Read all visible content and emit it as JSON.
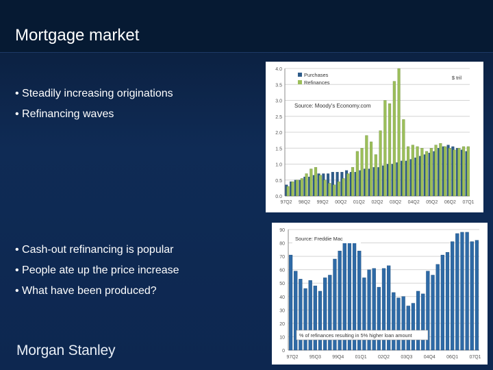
{
  "slide": {
    "title": "Mortgage market",
    "bullets_top": [
      "• Steadily increasing originations",
      "• Refinancing waves"
    ],
    "bullets_bottom": [
      "• Cash-out refinancing is popular",
      "• People ate up the price increase",
      "• What have been produced?"
    ],
    "logo_text": "Morgan Stanley"
  },
  "colors": {
    "background": "#0c2549",
    "purchases": "#2e5c8a",
    "refinances": "#9cbf5a",
    "chart2_bars": "#2e6aa6"
  },
  "chart_data": [
    {
      "type": "bar",
      "unit_label": "$ tril",
      "source": "Source: Moody's Economy.com",
      "legend": [
        "Purchases",
        "Refinances"
      ],
      "legend_position": "top-left",
      "ylim": [
        0,
        4.0
      ],
      "yticks": [
        "4.0",
        "3.5",
        "3.0",
        "2.5",
        "2.0",
        "1.5",
        "1.0",
        "0.5",
        "0.0"
      ],
      "xticks": [
        "97Q2",
        "98Q2",
        "99Q2",
        "00Q2",
        "01Q2",
        "02Q2",
        "03Q2",
        "04Q2",
        "05Q2",
        "06Q2",
        "07Q1"
      ],
      "categories_count": 40,
      "series": [
        {
          "name": "Purchases",
          "values": [
            0.35,
            0.45,
            0.5,
            0.5,
            0.6,
            0.6,
            0.65,
            0.7,
            0.7,
            0.7,
            0.75,
            0.75,
            0.75,
            0.8,
            0.75,
            0.75,
            0.8,
            0.85,
            0.85,
            0.9,
            0.9,
            0.95,
            1.0,
            1.0,
            1.05,
            1.1,
            1.1,
            1.15,
            1.2,
            1.25,
            1.3,
            1.35,
            1.4,
            1.5,
            1.55,
            1.6,
            1.55,
            1.5,
            1.45,
            1.4
          ]
        },
        {
          "name": "Refinances",
          "values": [
            0.3,
            0.45,
            0.5,
            0.55,
            0.7,
            0.85,
            0.9,
            0.65,
            0.5,
            0.4,
            0.35,
            0.45,
            0.55,
            0.7,
            0.9,
            1.4,
            1.5,
            1.9,
            1.7,
            1.3,
            2.05,
            3.0,
            2.9,
            3.6,
            4.0,
            2.4,
            1.55,
            1.6,
            1.55,
            1.5,
            1.4,
            1.5,
            1.6,
            1.65,
            1.55,
            1.5,
            1.45,
            1.5,
            1.55,
            1.55
          ]
        }
      ]
    },
    {
      "type": "bar",
      "source": "Source: Freddie Mac",
      "annotation": "% of refinances resulting in 5% higher loan amount",
      "ylim": [
        0,
        90
      ],
      "yticks": [
        "90",
        "80",
        "70",
        "60",
        "50",
        "40",
        "30",
        "20",
        "10",
        "0"
      ],
      "xticks": [
        "97Q2",
        "95Q3",
        "99Q4",
        "01Q1",
        "02Q2",
        "03Q3",
        "04Q4",
        "06Q1",
        "07Q1"
      ],
      "values": [
        71,
        59,
        53,
        46,
        52,
        48,
        44,
        54,
        56,
        68,
        74,
        80,
        80,
        81,
        74,
        54,
        60,
        61,
        47,
        61,
        63,
        43,
        39,
        40,
        33,
        35,
        44,
        42,
        59,
        56,
        64,
        71,
        73,
        81,
        87,
        88,
        88,
        81,
        82
      ]
    }
  ]
}
